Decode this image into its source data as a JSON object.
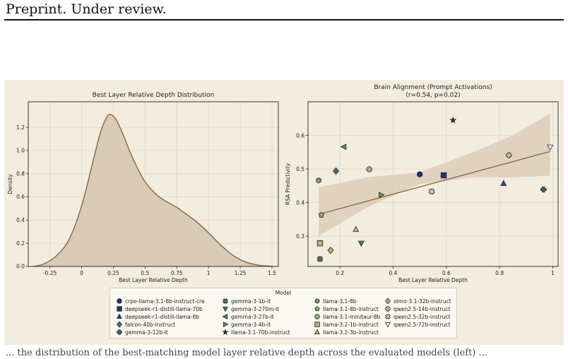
{
  "header": {
    "text": "Preprint. Under review."
  },
  "body_text": {
    "line": "... the distribution of the best-matching model layer relative depth across the evaluated models (left) ..."
  },
  "chart_data": [
    {
      "type": "area",
      "title": "Best Layer Relative Depth Distribution",
      "xlabel": "Best Layer Relative Depth",
      "ylabel": "Density",
      "xlim": [
        -0.42,
        1.55
      ],
      "ylim": [
        0,
        1.42
      ],
      "xticks": [
        -0.25,
        0,
        0.25,
        0.5,
        0.75,
        1,
        1.25,
        1.5
      ],
      "xtick_labels": [
        "-0.25",
        "0",
        "0.25",
        "0.5",
        "0.75",
        "1",
        "1.25",
        "1.5"
      ],
      "yticks": [
        0,
        0.2,
        0.4,
        0.6,
        0.8,
        1.0,
        1.2
      ],
      "ytick_labels": [
        "0.0",
        "0.2",
        "0.4",
        "0.6",
        "0.8",
        "1.0",
        "1.2"
      ],
      "grid": true,
      "x": [
        -0.38,
        -0.3,
        -0.2,
        -0.1,
        0.0,
        0.1,
        0.15,
        0.2,
        0.23,
        0.27,
        0.33,
        0.4,
        0.5,
        0.6,
        0.7,
        0.75,
        0.8,
        0.9,
        1.0,
        1.1,
        1.2,
        1.3,
        1.4,
        1.5
      ],
      "y": [
        0.0,
        0.02,
        0.09,
        0.23,
        0.52,
        0.95,
        1.16,
        1.29,
        1.31,
        1.27,
        1.13,
        0.94,
        0.73,
        0.61,
        0.54,
        0.51,
        0.47,
        0.39,
        0.29,
        0.18,
        0.09,
        0.035,
        0.01,
        0.0
      ],
      "fill": "#d9cbb6",
      "line_color": "#8b6e48"
    },
    {
      "type": "scatter",
      "title": "Brain Alignment (Prompt Activations)",
      "subtitle": "(r=0.54, p=0.02)",
      "xlabel": "Best Layer Relative Depth",
      "ylabel": "RSA Predictivity",
      "xlim": [
        0.08,
        1.02
      ],
      "ylim": [
        0.21,
        0.7
      ],
      "xticks": [
        0.2,
        0.4,
        0.6,
        0.8,
        1
      ],
      "xtick_labels": [
        "0.2",
        "0.4",
        "0.6",
        "0.8",
        "1"
      ],
      "yticks": [
        0.3,
        0.4,
        0.5,
        0.6
      ],
      "ytick_labels": [
        "0.3",
        "0.4",
        "0.5",
        "0.6"
      ],
      "grid": true,
      "regression": {
        "line": [
          [
            0.12,
            0.365
          ],
          [
            0.99,
            0.552
          ]
        ],
        "band_upper": [
          [
            0.12,
            0.445
          ],
          [
            0.3,
            0.475
          ],
          [
            0.5,
            0.49
          ],
          [
            0.7,
            0.55
          ],
          [
            0.85,
            0.6
          ],
          [
            0.99,
            0.665
          ]
        ],
        "band_lower": [
          [
            0.12,
            0.3
          ],
          [
            0.3,
            0.385
          ],
          [
            0.5,
            0.455
          ],
          [
            0.7,
            0.475
          ],
          [
            0.85,
            0.475
          ],
          [
            0.99,
            0.48
          ]
        ],
        "line_color": "#8b6e48",
        "band_color": "#dccdb9"
      },
      "points": [
        {
          "model": "crpo-llama-3.1-8b-instruct-cre",
          "marker": "circle",
          "color": "#2a3470",
          "x": 0.5,
          "y": 0.484
        },
        {
          "model": "deepseek-r1-distill-llama-70b",
          "marker": "square",
          "color": "#2a3470",
          "x": 0.59,
          "y": 0.481
        },
        {
          "model": "deepseek-r1-distill-llama-8b",
          "marker": "triangle-up",
          "color": "#2e4a7a",
          "x": 0.815,
          "y": 0.457
        },
        {
          "model": "falcon-40b-instruct",
          "marker": "diamond",
          "color": "#3f6f96",
          "x": 0.185,
          "y": 0.494
        },
        {
          "model": "gemma-3-12b-it",
          "marker": "plus",
          "color": "#3d6478",
          "x": 0.965,
          "y": 0.439
        },
        {
          "model": "gemma-3-1b-it",
          "marker": "x",
          "color": "#4a7a7a",
          "x": 0.125,
          "y": 0.232
        },
        {
          "model": "gemma-3-270m-it",
          "marker": "triangle-down",
          "color": "#4e7d62",
          "x": 0.28,
          "y": 0.279
        },
        {
          "model": "gemma-3-27b-it",
          "marker": "triangle-left",
          "color": "#5a8a58",
          "x": 0.215,
          "y": 0.566
        },
        {
          "model": "gemma-3-4b-it",
          "marker": "triangle-right",
          "color": "#6e9a58",
          "x": 0.355,
          "y": 0.423
        },
        {
          "model": "llama-3.1-70b-instruct",
          "marker": "star",
          "color": "#333333",
          "x": 0.625,
          "y": 0.645
        },
        {
          "model": "llama-3.1-8b",
          "marker": "hexagon",
          "color": "#7aa060",
          "x": 0.12,
          "y": 0.466
        },
        {
          "model": "llama-3.1-8b-instruct",
          "marker": "pentagon",
          "color": "#88a866",
          "x": 0.13,
          "y": 0.363
        },
        {
          "model": "llama-3.1-minitaur-8b",
          "marker": "circle",
          "color": "#9cb26e",
          "x": 0.31,
          "y": 0.499
        },
        {
          "model": "llama-3.2-1b-instruct",
          "marker": "square",
          "color": "#a8b474",
          "x": 0.125,
          "y": 0.279
        },
        {
          "model": "llama-3.2-3b-instruct",
          "marker": "triangle-up",
          "color": "#b2b87e",
          "x": 0.26,
          "y": 0.32
        },
        {
          "model": "olmo-3.1-32b-instruct",
          "marker": "diamond",
          "color": "#c4a878",
          "x": 0.165,
          "y": 0.258
        },
        {
          "model": "qwen2.5-14b-instruct",
          "marker": "plus",
          "color": "#d8c4a0",
          "x": 0.835,
          "y": 0.541
        },
        {
          "model": "qwen2.5-32b-instruct",
          "marker": "x",
          "color": "#e0d2bc",
          "x": 0.545,
          "y": 0.433
        },
        {
          "model": "qwen2.5-72b-instruct",
          "marker": "triangle-down",
          "color": "#ffffff",
          "x": 0.99,
          "y": 0.565
        }
      ],
      "legend": {
        "title": "Model",
        "placement": "bottom",
        "columns": 4
      }
    }
  ]
}
